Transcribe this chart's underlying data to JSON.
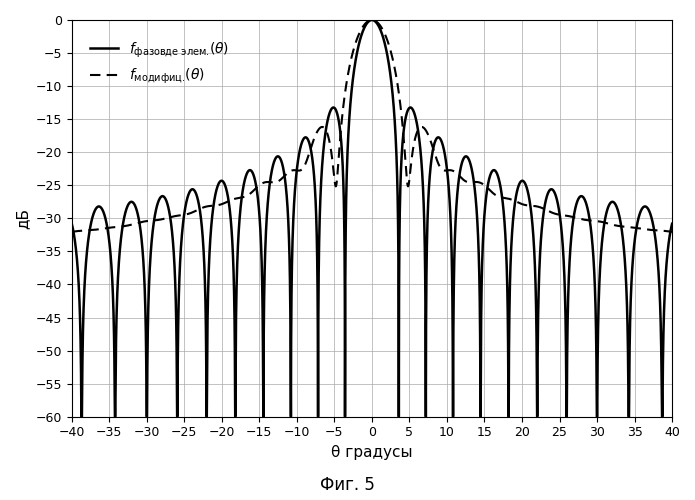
{
  "title": "",
  "xlabel": "θ градусы",
  "ylabel": "дБ",
  "xlim": [
    -40,
    40
  ],
  "ylim": [
    -60,
    0
  ],
  "xticks": [
    -40,
    -35,
    -30,
    -25,
    -20,
    -15,
    -10,
    -5,
    0,
    5,
    10,
    15,
    20,
    25,
    30,
    35,
    40
  ],
  "yticks": [
    0,
    -5,
    -10,
    -15,
    -20,
    -25,
    -30,
    -35,
    -40,
    -45,
    -50,
    -55,
    -60
  ],
  "legend1": "$f_{фазовде элем.}(\\theta)$",
  "legend2": "$f_{модифиц.}(\\theta)$",
  "fig_label": "Фиг. 5",
  "N": 32,
  "d_lambda": 0.5,
  "theta0": 0.0,
  "clip_bottom": -60,
  "background_color": "#ffffff",
  "grid_color": "#aaaaaa",
  "line_color": "#000000"
}
